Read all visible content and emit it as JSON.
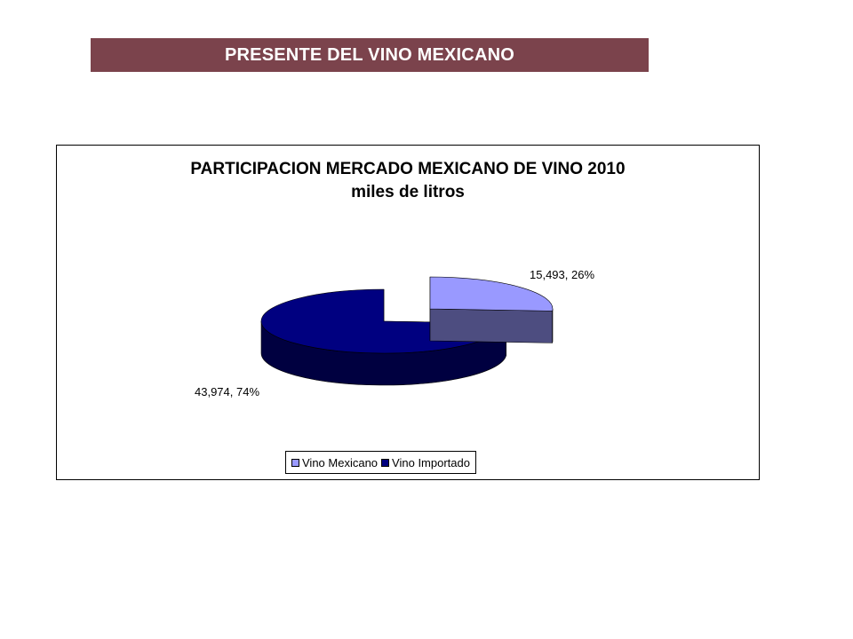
{
  "header": {
    "title": "PRESENTE DEL VINO MEXICANO",
    "color": "#7b434c"
  },
  "chart_data": {
    "type": "pie",
    "title": "PARTICIPACION MERCADO MEXICANO DE VINO 2010",
    "subtitle": "miles de litros",
    "series": [
      {
        "name": "Vino Mexicano",
        "value": 15493,
        "percent": 26,
        "label": "15,493,  26%",
        "color": "#9999ff",
        "side_color": "#4d4d80"
      },
      {
        "name": "Vino Importado",
        "value": 43974,
        "percent": 74,
        "label": "43,974,  74%",
        "color": "#000080",
        "side_color": "#000040"
      }
    ],
    "legend_position": "bottom",
    "exploded": "Vino Mexicano",
    "three_d": true
  }
}
